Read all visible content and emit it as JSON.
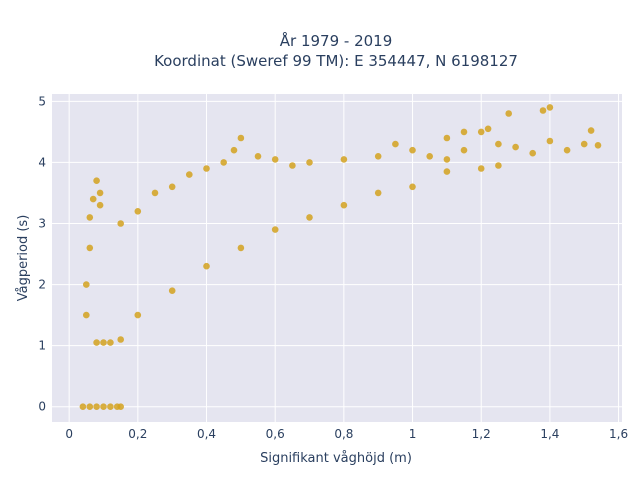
{
  "chart_data": {
    "type": "scatter",
    "title_line1": "År 1979 - 2019",
    "title_line2": "Koordinat (Sweref 99 TM): E 354447, N 6198127",
    "xlabel": "Signifikant våghöjd (m)",
    "ylabel": "Vågperiod (s)",
    "xlim": [
      -0.05,
      1.61
    ],
    "ylim": [
      -0.25,
      5.12
    ],
    "xticks": [
      0,
      0.2,
      0.4,
      0.6,
      0.8,
      1,
      1.2,
      1.4,
      1.6
    ],
    "xtick_labels": [
      "0",
      "0,2",
      "0,4",
      "0,6",
      "0,8",
      "1",
      "1,2",
      "1,4",
      "1,6"
    ],
    "yticks": [
      0,
      1,
      2,
      3,
      4,
      5
    ],
    "ytick_labels": [
      "0",
      "1",
      "2",
      "3",
      "4",
      "5"
    ],
    "grid": true,
    "marker_color": "#d4a21f",
    "plot_bgcolor": "#e5e5f0",
    "series": [
      {
        "points": [
          [
            0.04,
            0
          ],
          [
            0.06,
            0
          ],
          [
            0.08,
            0
          ],
          [
            0.1,
            0
          ],
          [
            0.12,
            0
          ],
          [
            0.14,
            0
          ],
          [
            0.15,
            0
          ],
          [
            0.05,
            1.5
          ],
          [
            0.05,
            2.0
          ],
          [
            0.06,
            2.6
          ],
          [
            0.06,
            3.1
          ],
          [
            0.07,
            3.4
          ],
          [
            0.08,
            3.7
          ],
          [
            0.09,
            3.5
          ],
          [
            0.09,
            3.3
          ],
          [
            0.08,
            1.05
          ],
          [
            0.1,
            1.05
          ],
          [
            0.12,
            1.05
          ],
          [
            0.15,
            1.1
          ],
          [
            0.2,
            1.5
          ],
          [
            0.3,
            1.9
          ],
          [
            0.4,
            2.3
          ],
          [
            0.5,
            2.6
          ],
          [
            0.6,
            2.9
          ],
          [
            0.7,
            3.1
          ],
          [
            0.8,
            3.3
          ],
          [
            0.9,
            3.5
          ],
          [
            1.0,
            3.6
          ],
          [
            0.15,
            3.0
          ],
          [
            0.2,
            3.2
          ],
          [
            0.25,
            3.5
          ],
          [
            0.3,
            3.6
          ],
          [
            0.35,
            3.8
          ],
          [
            0.4,
            3.9
          ],
          [
            0.45,
            4.0
          ],
          [
            0.48,
            4.2
          ],
          [
            0.5,
            4.4
          ],
          [
            0.55,
            4.1
          ],
          [
            0.6,
            4.05
          ],
          [
            0.65,
            3.95
          ],
          [
            0.7,
            4.0
          ],
          [
            0.8,
            4.05
          ],
          [
            0.9,
            4.1
          ],
          [
            0.95,
            4.3
          ],
          [
            1.0,
            4.2
          ],
          [
            1.05,
            4.1
          ],
          [
            1.1,
            4.05
          ],
          [
            1.15,
            4.2
          ],
          [
            1.1,
            4.4
          ],
          [
            1.15,
            4.5
          ],
          [
            1.2,
            4.5
          ],
          [
            1.22,
            4.55
          ],
          [
            1.25,
            4.3
          ],
          [
            1.3,
            4.25
          ],
          [
            1.35,
            4.15
          ],
          [
            1.4,
            4.35
          ],
          [
            1.45,
            4.2
          ],
          [
            1.5,
            4.3
          ],
          [
            1.52,
            4.52
          ],
          [
            1.54,
            4.28
          ],
          [
            1.38,
            4.85
          ],
          [
            1.4,
            4.9
          ],
          [
            1.28,
            4.8
          ],
          [
            1.1,
            3.85
          ],
          [
            1.2,
            3.9
          ],
          [
            1.25,
            3.95
          ]
        ]
      }
    ]
  }
}
